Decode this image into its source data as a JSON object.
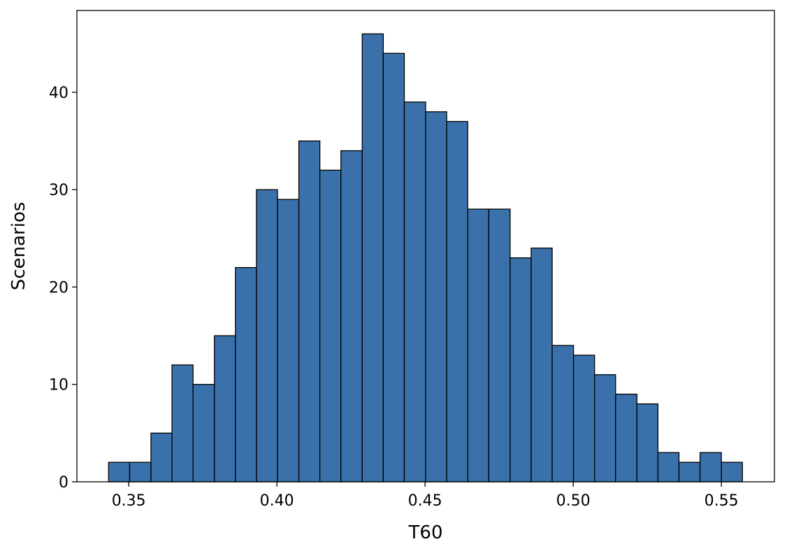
{
  "chart_data": {
    "type": "histogram",
    "xlabel": "T60",
    "ylabel": "Scenarios",
    "color": "#3a71ab",
    "bins": [
      0.3432,
      0.3503,
      0.3575,
      0.3646,
      0.3717,
      0.3789,
      0.386,
      0.3931,
      0.4002,
      0.4074,
      0.4145,
      0.4216,
      0.4288,
      0.4359,
      0.443,
      0.4502,
      0.4573,
      0.4644,
      0.4715,
      0.4787,
      0.4858,
      0.4929,
      0.5001,
      0.5072,
      0.5143,
      0.5215,
      0.5286,
      0.5357,
      0.5428,
      0.55,
      0.5571
    ],
    "values": [
      2,
      2,
      5,
      12,
      10,
      15,
      22,
      30,
      29,
      35,
      32,
      34,
      46,
      44,
      39,
      38,
      37,
      28,
      28,
      23,
      24,
      14,
      13,
      11,
      9,
      8,
      3,
      2,
      3,
      2
    ],
    "xlim": [
      0.3325,
      0.5679
    ],
    "ylim": [
      0,
      48.4
    ],
    "xticks": [
      {
        "value": 0.35,
        "label": "0.35"
      },
      {
        "value": 0.4,
        "label": "0.40"
      },
      {
        "value": 0.45,
        "label": "0.45"
      },
      {
        "value": 0.5,
        "label": "0.50"
      },
      {
        "value": 0.55,
        "label": "0.55"
      }
    ],
    "yticks": [
      0,
      10,
      20,
      30,
      40
    ]
  }
}
